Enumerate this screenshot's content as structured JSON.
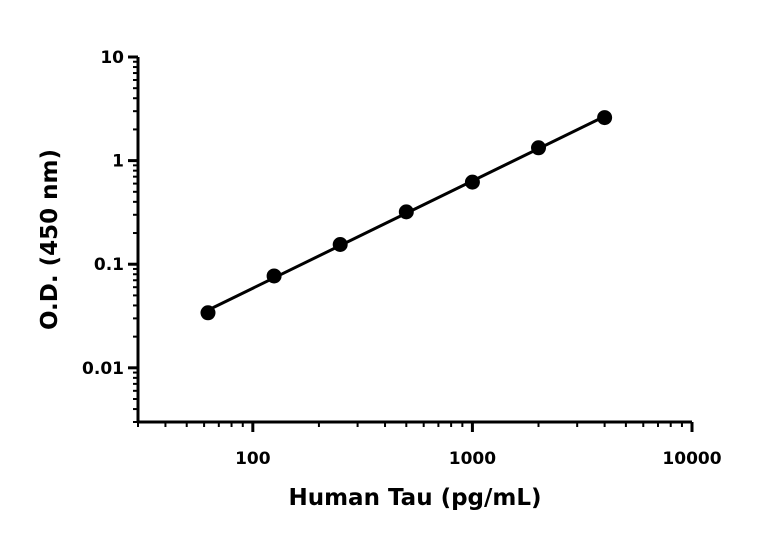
{
  "chart_data": {
    "type": "scatter",
    "xlabel": "Human Tau (pg/mL)",
    "ylabel": "O.D. (450 nm)",
    "x_scale": "log",
    "y_scale": "log",
    "xlim": [
      30,
      10000
    ],
    "ylim": [
      0.003,
      10
    ],
    "x_ticks": [
      {
        "value": 100,
        "label": "100"
      },
      {
        "value": 1000,
        "label": "1000"
      },
      {
        "value": 10000,
        "label": "10000"
      }
    ],
    "y_ticks": [
      {
        "value": 0.01,
        "label": "0.01"
      },
      {
        "value": 0.1,
        "label": "0.1"
      },
      {
        "value": 1,
        "label": "1"
      },
      {
        "value": 10,
        "label": "10"
      }
    ],
    "grid": false,
    "legend": "none",
    "series": [
      {
        "x": [
          62.5,
          125,
          250,
          500,
          1000,
          2000,
          4000
        ],
        "y": [
          0.034,
          0.077,
          0.155,
          0.32,
          0.62,
          1.33,
          2.6
        ],
        "color": "#000000",
        "marker": "circle",
        "fit_line": true
      }
    ]
  }
}
